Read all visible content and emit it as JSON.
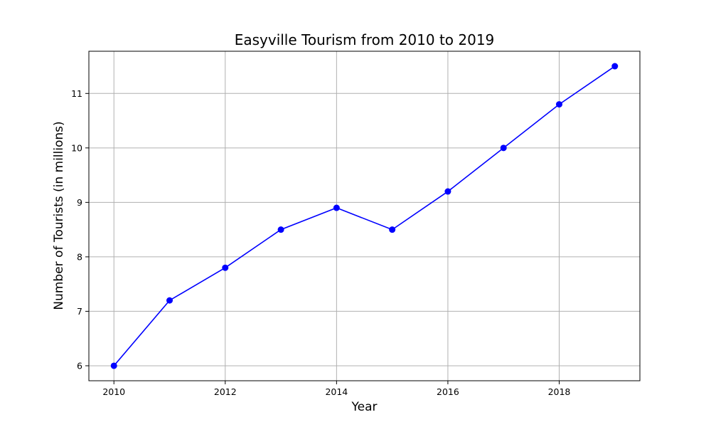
{
  "chart_data": {
    "type": "line",
    "title": "Easyville Tourism from 2010 to 2019",
    "xlabel": "Year",
    "ylabel": "Number of Tourists (in millions)",
    "x": [
      2010,
      2011,
      2012,
      2013,
      2014,
      2015,
      2016,
      2017,
      2018,
      2019
    ],
    "series": [
      {
        "values": [
          6.0,
          7.2,
          7.8,
          8.5,
          8.9,
          8.5,
          9.2,
          10.0,
          10.8,
          11.5
        ],
        "color": "#0000ff",
        "marker": "circle"
      }
    ],
    "xlim": [
      2009.55,
      2019.45
    ],
    "ylim": [
      5.725,
      11.775
    ],
    "x_ticks": [
      "2010",
      "2012",
      "2014",
      "2016",
      "2018"
    ],
    "y_ticks": [
      "6",
      "7",
      "8",
      "9",
      "10",
      "11"
    ],
    "grid": true,
    "legend": "none"
  }
}
